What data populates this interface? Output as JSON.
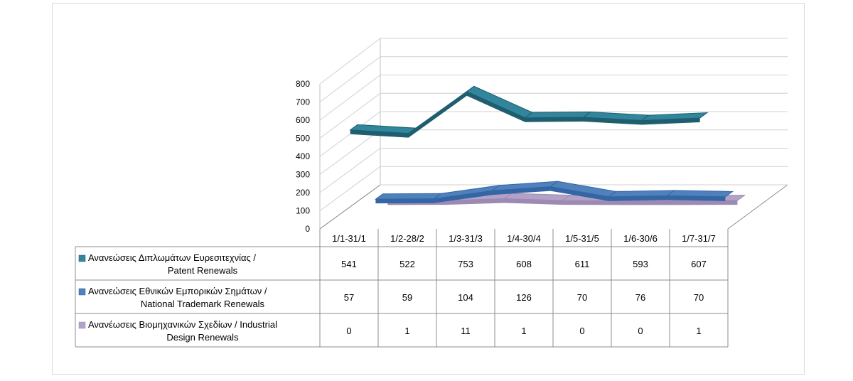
{
  "chart_data": {
    "type": "line",
    "style": "3d-line-with-data-table",
    "categories": [
      "1/1-31/1",
      "1/2-28/2",
      "1/3-31/3",
      "1/4-30/4",
      "1/5-31/5",
      "1/6-30/6",
      "1/7-31/7"
    ],
    "ylim": [
      0,
      800
    ],
    "yticks": [
      0,
      100,
      200,
      300,
      400,
      500,
      600,
      700,
      800
    ],
    "grid": true,
    "series": [
      {
        "name_lines": [
          "Ανανεώσεις Διπλωμάτων Ευρεσιτεχνίας  /",
          "Patent Renewals"
        ],
        "values": [
          541,
          522,
          753,
          608,
          611,
          593,
          607
        ],
        "color": "#31859c",
        "top_color": "#1f5e6e"
      },
      {
        "name_lines": [
          "Ανανεώσεις Εθνικών Εμπορικών Σημάτων /",
          "National Trademark Renewals"
        ],
        "values": [
          57,
          59,
          104,
          126,
          70,
          76,
          70
        ],
        "color": "#4f81bd",
        "top_color": "#3465a4"
      },
      {
        "name_lines": [
          "Ανανέωσεις Βιομηχανικών Σχεδίων / Industrial",
          "Design Renewals"
        ],
        "values": [
          0,
          1,
          11,
          1,
          0,
          0,
          1
        ],
        "color": "#b3a2c7",
        "top_color": "#9c8ab3"
      }
    ]
  }
}
